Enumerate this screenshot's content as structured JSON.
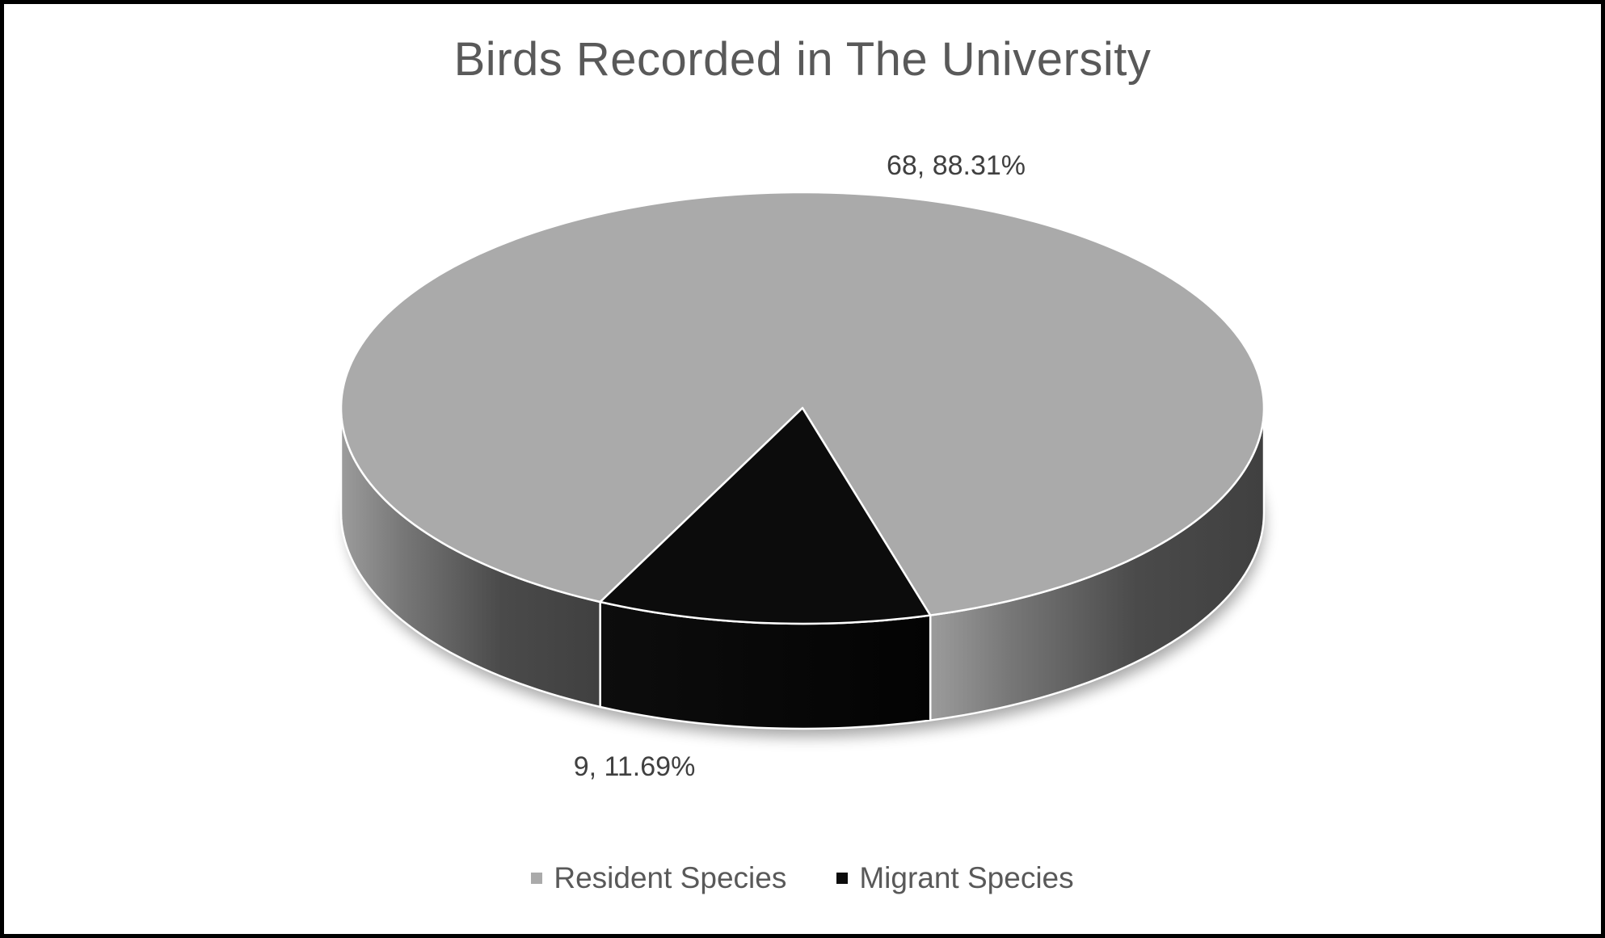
{
  "chart_data": {
    "type": "pie",
    "style": "3d",
    "title": "Birds Recorded in The University",
    "categories": [
      "Resident Species",
      "Migrant Species"
    ],
    "values": [
      68,
      9
    ],
    "percentages": [
      88.31,
      11.69
    ],
    "data_labels": [
      "68, 88.31%",
      "9, 11.69%"
    ],
    "colors": [
      "#aaaaaa",
      "#0c0c0c"
    ],
    "legend_position": "bottom"
  }
}
